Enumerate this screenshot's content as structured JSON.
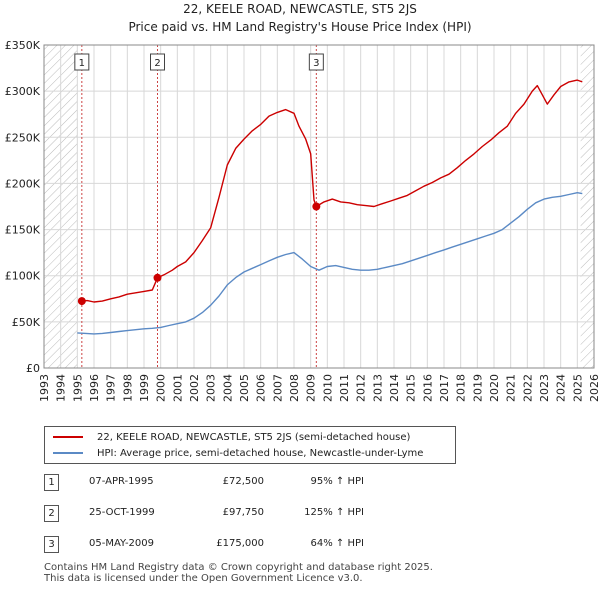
{
  "title": "22, KEELE ROAD, NEWCASTLE, ST5 2JS",
  "subtitle": "Price paid vs. HM Land Registry's House Price Index (HPI)",
  "colors": {
    "property": "#cc0000",
    "hpi": "#5b8ac5",
    "grid": "#d8d8d8",
    "hatch": "#bbbbbb",
    "marker_line": "#cc4444"
  },
  "chart_data": {
    "type": "line",
    "xlim": [
      1993,
      2026
    ],
    "ylim": [
      0,
      350000
    ],
    "x_ticks": [
      "1993",
      "1994",
      "1995",
      "1996",
      "1997",
      "1998",
      "1999",
      "2000",
      "2001",
      "2002",
      "2003",
      "2004",
      "2005",
      "2006",
      "2007",
      "2008",
      "2009",
      "2010",
      "2011",
      "2012",
      "2013",
      "2014",
      "2015",
      "2016",
      "2017",
      "2018",
      "2019",
      "2020",
      "2021",
      "2022",
      "2023",
      "2024",
      "2025",
      "2026"
    ],
    "y_ticks": [
      {
        "value": 0,
        "label": "£0"
      },
      {
        "value": 50000,
        "label": "£50K"
      },
      {
        "value": 100000,
        "label": "£100K"
      },
      {
        "value": 150000,
        "label": "£150K"
      },
      {
        "value": 200000,
        "label": "£200K"
      },
      {
        "value": 250000,
        "label": "£250K"
      },
      {
        "value": 300000,
        "label": "£300K"
      },
      {
        "value": 350000,
        "label": "£350K"
      }
    ],
    "hatched_ranges": [
      [
        1993,
        1995.0
      ],
      [
        2025.2,
        2026
      ]
    ],
    "series": [
      {
        "name": "22, KEELE ROAD, NEWCASTLE, ST5 2JS (semi-detached house)",
        "color": "#cc0000",
        "points": [
          [
            1995.27,
            72500
          ],
          [
            1995.6,
            73000
          ],
          [
            1996,
            71500
          ],
          [
            1996.5,
            72500
          ],
          [
            1997,
            75000
          ],
          [
            1997.5,
            77000
          ],
          [
            1998,
            80000
          ],
          [
            1998.5,
            81500
          ],
          [
            1999,
            83000
          ],
          [
            1999.5,
            84500
          ],
          [
            1999.81,
            97750
          ],
          [
            2000.2,
            101000
          ],
          [
            2000.7,
            106000
          ],
          [
            2001,
            110000
          ],
          [
            2001.5,
            115000
          ],
          [
            2002,
            125000
          ],
          [
            2002.5,
            138000
          ],
          [
            2003,
            152000
          ],
          [
            2003.5,
            185000
          ],
          [
            2004,
            220000
          ],
          [
            2004.5,
            238000
          ],
          [
            2005,
            248000
          ],
          [
            2005.5,
            257000
          ],
          [
            2006,
            264000
          ],
          [
            2006.5,
            273000
          ],
          [
            2007,
            277000
          ],
          [
            2007.5,
            280000
          ],
          [
            2008,
            276000
          ],
          [
            2008.3,
            262000
          ],
          [
            2008.7,
            248000
          ],
          [
            2009.0,
            232000
          ],
          [
            2009.2,
            182000
          ],
          [
            2009.34,
            175000
          ],
          [
            2009.8,
            180000
          ],
          [
            2010.3,
            183000
          ],
          [
            2010.8,
            180000
          ],
          [
            2011.3,
            179000
          ],
          [
            2011.8,
            177000
          ],
          [
            2012.3,
            176000
          ],
          [
            2012.8,
            175000
          ],
          [
            2013.3,
            178000
          ],
          [
            2013.8,
            181000
          ],
          [
            2014.3,
            184000
          ],
          [
            2014.8,
            187000
          ],
          [
            2015.3,
            192000
          ],
          [
            2015.8,
            197000
          ],
          [
            2016.3,
            201000
          ],
          [
            2016.8,
            206000
          ],
          [
            2017.3,
            210000
          ],
          [
            2017.8,
            217000
          ],
          [
            2018.3,
            225000
          ],
          [
            2018.8,
            232000
          ],
          [
            2019.3,
            240000
          ],
          [
            2019.8,
            247000
          ],
          [
            2020.3,
            255000
          ],
          [
            2020.8,
            262000
          ],
          [
            2021.3,
            276000
          ],
          [
            2021.8,
            286000
          ],
          [
            2022.3,
            300000
          ],
          [
            2022.6,
            306000
          ],
          [
            2022.9,
            296000
          ],
          [
            2023.2,
            286000
          ],
          [
            2023.6,
            296000
          ],
          [
            2024,
            305000
          ],
          [
            2024.5,
            310000
          ],
          [
            2025,
            312000
          ],
          [
            2025.3,
            310000
          ]
        ]
      },
      {
        "name": "HPI: Average price, semi-detached house, Newcastle-under-Lyme",
        "color": "#5b8ac5",
        "points": [
          [
            1995.0,
            38000
          ],
          [
            1995.5,
            37500
          ],
          [
            1996,
            37000
          ],
          [
            1996.5,
            37500
          ],
          [
            1997,
            38500
          ],
          [
            1997.5,
            39500
          ],
          [
            1998,
            40500
          ],
          [
            1998.5,
            41500
          ],
          [
            1999,
            42500
          ],
          [
            1999.5,
            43000
          ],
          [
            2000,
            44000
          ],
          [
            2000.5,
            46000
          ],
          [
            2001,
            48000
          ],
          [
            2001.5,
            50000
          ],
          [
            2002,
            54000
          ],
          [
            2002.5,
            60000
          ],
          [
            2003,
            68000
          ],
          [
            2003.5,
            78000
          ],
          [
            2004,
            90000
          ],
          [
            2004.5,
            98000
          ],
          [
            2005,
            104000
          ],
          [
            2005.5,
            108000
          ],
          [
            2006,
            112000
          ],
          [
            2006.5,
            116000
          ],
          [
            2007,
            120000
          ],
          [
            2007.5,
            123000
          ],
          [
            2008,
            125000
          ],
          [
            2008.5,
            118000
          ],
          [
            2009,
            110000
          ],
          [
            2009.5,
            106000
          ],
          [
            2010,
            110000
          ],
          [
            2010.5,
            111000
          ],
          [
            2011,
            109000
          ],
          [
            2011.5,
            107000
          ],
          [
            2012,
            106000
          ],
          [
            2012.5,
            106000
          ],
          [
            2013,
            107000
          ],
          [
            2013.5,
            109000
          ],
          [
            2014,
            111000
          ],
          [
            2014.5,
            113000
          ],
          [
            2015,
            116000
          ],
          [
            2015.5,
            119000
          ],
          [
            2016,
            122000
          ],
          [
            2016.5,
            125000
          ],
          [
            2017,
            128000
          ],
          [
            2017.5,
            131000
          ],
          [
            2018,
            134000
          ],
          [
            2018.5,
            137000
          ],
          [
            2019,
            140000
          ],
          [
            2019.5,
            143000
          ],
          [
            2020,
            146000
          ],
          [
            2020.5,
            150000
          ],
          [
            2021,
            157000
          ],
          [
            2021.5,
            164000
          ],
          [
            2022,
            172000
          ],
          [
            2022.5,
            179000
          ],
          [
            2023,
            183000
          ],
          [
            2023.5,
            185000
          ],
          [
            2024,
            186000
          ],
          [
            2024.5,
            188000
          ],
          [
            2025,
            190000
          ],
          [
            2025.3,
            189000
          ]
        ]
      }
    ],
    "markers": [
      {
        "label": "1",
        "x": 1995.27,
        "y": 72500
      },
      {
        "label": "2",
        "x": 1999.81,
        "y": 97750
      },
      {
        "label": "3",
        "x": 2009.34,
        "y": 175000
      }
    ]
  },
  "legend": {
    "property": "22, KEELE ROAD, NEWCASTLE, ST5 2JS (semi-detached house)",
    "hpi": "HPI: Average price, semi-detached house, Newcastle-under-Lyme"
  },
  "sales": [
    {
      "num": "1",
      "date": "07-APR-1995",
      "price": "£72,500",
      "hpi": "95% ↑ HPI"
    },
    {
      "num": "2",
      "date": "25-OCT-1999",
      "price": "£97,750",
      "hpi": "125% ↑ HPI"
    },
    {
      "num": "3",
      "date": "05-MAY-2009",
      "price": "£175,000",
      "hpi": "64% ↑ HPI"
    }
  ],
  "footer": {
    "line1": "Contains HM Land Registry data © Crown copyright and database right 2025.",
    "line2": "This data is licensed under the Open Government Licence v3.0."
  }
}
